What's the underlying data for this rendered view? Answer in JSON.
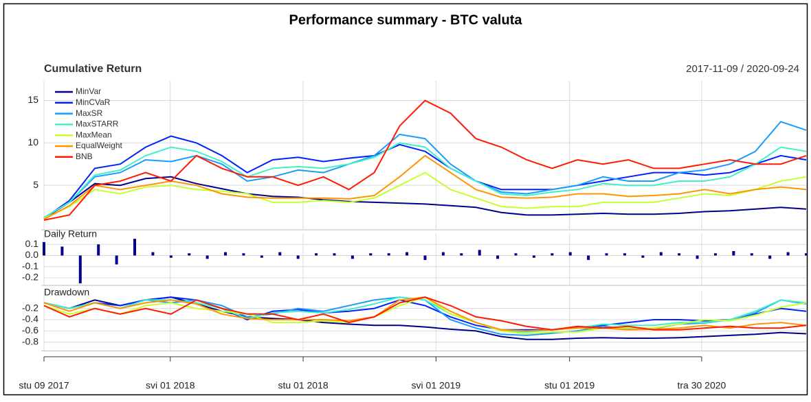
{
  "title": "Performance summary - BTC valuta",
  "chart_data": [
    {
      "type": "line",
      "title": "Cumulative Return",
      "subtitle": "2017-11-09 / 2020-09-24",
      "x": [
        0,
        35,
        70,
        105,
        140,
        175,
        210,
        245,
        280,
        315,
        350,
        385,
        420,
        455,
        490,
        525,
        560,
        595,
        630,
        665,
        700,
        735,
        770,
        805,
        840,
        875,
        910,
        945,
        980,
        1015,
        1050
      ],
      "xlim": [
        0,
        1050
      ],
      "ylim": [
        0,
        17.3
      ],
      "yticks": [
        5,
        10,
        15
      ],
      "grid": true,
      "legend": "top-left",
      "series": [
        {
          "name": "MinVar",
          "color": "#00008b",
          "values": [
            1.1,
            3.0,
            5.2,
            5.0,
            5.8,
            6.0,
            5.2,
            4.6,
            4.0,
            3.7,
            3.6,
            3.3,
            3.1,
            3.0,
            2.9,
            2.8,
            2.6,
            2.4,
            1.8,
            1.5,
            1.5,
            1.6,
            1.7,
            1.6,
            1.6,
            1.7,
            1.9,
            2.0,
            2.2,
            2.4,
            2.2
          ]
        },
        {
          "name": "MinCVaR",
          "color": "#0022ff",
          "values": [
            1.1,
            3.2,
            7.0,
            7.5,
            9.5,
            10.8,
            10.0,
            8.5,
            6.5,
            8.0,
            8.3,
            7.8,
            8.2,
            8.5,
            9.8,
            9.0,
            7.0,
            5.5,
            4.5,
            4.5,
            4.5,
            5.0,
            5.5,
            6.0,
            6.5,
            6.5,
            6.2,
            6.5,
            7.5,
            8.5,
            8.0
          ]
        },
        {
          "name": "MaxSR",
          "color": "#1a9cff",
          "values": [
            1.2,
            3.0,
            6.0,
            6.5,
            8.0,
            7.8,
            8.5,
            7.5,
            5.5,
            6.0,
            6.8,
            6.5,
            7.5,
            8.5,
            11.0,
            10.5,
            7.5,
            5.5,
            4.2,
            4.0,
            4.5,
            5.0,
            6.0,
            5.5,
            5.5,
            6.5,
            6.8,
            7.5,
            9.0,
            12.5,
            11.5
          ]
        },
        {
          "name": "MaxSTARR",
          "color": "#40f0c8",
          "values": [
            1.2,
            3.0,
            6.2,
            6.8,
            8.5,
            9.5,
            9.0,
            7.8,
            6.0,
            7.0,
            7.2,
            7.0,
            7.5,
            8.3,
            10.0,
            9.5,
            7.0,
            5.5,
            4.0,
            3.8,
            4.2,
            4.5,
            5.2,
            5.0,
            5.0,
            5.5,
            5.5,
            6.0,
            7.5,
            9.5,
            9.0
          ]
        },
        {
          "name": "MaxMean",
          "color": "#c6ff2e",
          "values": [
            1.1,
            2.5,
            4.5,
            4.0,
            4.8,
            5.0,
            4.5,
            4.3,
            4.0,
            3.0,
            3.0,
            3.2,
            3.0,
            3.5,
            5.0,
            6.5,
            4.5,
            3.5,
            2.5,
            2.3,
            2.5,
            2.5,
            3.0,
            3.0,
            3.0,
            3.5,
            4.0,
            3.8,
            4.5,
            5.5,
            6.0
          ]
        },
        {
          "name": "EqualWeight",
          "color": "#ff9400",
          "values": [
            1.0,
            2.6,
            5.0,
            4.5,
            5.0,
            5.5,
            5.0,
            4.0,
            3.6,
            3.5,
            3.5,
            3.5,
            3.4,
            3.8,
            6.0,
            8.5,
            6.5,
            4.5,
            3.6,
            3.5,
            3.6,
            4.0,
            4.0,
            3.7,
            3.8,
            4.0,
            4.5,
            4.0,
            4.5,
            4.8,
            4.5
          ]
        },
        {
          "name": "BNB",
          "color": "#ff1a00",
          "values": [
            0.9,
            1.5,
            5.0,
            5.5,
            6.5,
            5.5,
            8.5,
            7.0,
            6.0,
            6.0,
            5.0,
            6.0,
            4.5,
            6.5,
            12.0,
            15.0,
            13.5,
            10.5,
            9.5,
            8.0,
            7.0,
            8.0,
            7.5,
            8.0,
            7.0,
            7.0,
            7.5,
            8.0,
            7.5,
            7.5,
            8.5
          ]
        }
      ]
    },
    {
      "type": "bar",
      "title": "Daily Return",
      "x": [
        0,
        25,
        50,
        75,
        100,
        125,
        150,
        175,
        200,
        225,
        250,
        275,
        300,
        325,
        350,
        375,
        400,
        425,
        450,
        475,
        500,
        525,
        550,
        575,
        600,
        625,
        650,
        675,
        700,
        725,
        750,
        775,
        800,
        825,
        850,
        875,
        900,
        925,
        950,
        975,
        1000,
        1025,
        1050
      ],
      "xlim": [
        0,
        1050
      ],
      "ylim": [
        -0.25,
        0.2
      ],
      "yticks": [
        0.1,
        {
          "value": 0,
          "label": "0.0"
        },
        -0.1,
        -0.2
      ],
      "grid": true,
      "color": "#00008b",
      "values": [
        0.12,
        0.08,
        -0.25,
        0.1,
        -0.08,
        0.15,
        0.03,
        -0.02,
        0.02,
        -0.03,
        0.03,
        0.02,
        -0.02,
        0.03,
        -0.03,
        0.02,
        0.02,
        -0.03,
        0.02,
        0.02,
        0.03,
        -0.04,
        0.03,
        0.02,
        0.05,
        -0.03,
        0.02,
        -0.02,
        0.02,
        0.03,
        -0.04,
        0.02,
        0.02,
        -0.02,
        0.03,
        0.02,
        -0.03,
        0.02,
        0.04,
        0.02,
        -0.03,
        0.03,
        0.02
      ]
    },
    {
      "type": "line",
      "title": "Drawdown",
      "x": [
        0,
        35,
        70,
        105,
        140,
        175,
        210,
        245,
        280,
        315,
        350,
        385,
        420,
        455,
        490,
        525,
        560,
        595,
        630,
        665,
        700,
        735,
        770,
        805,
        840,
        875,
        910,
        945,
        980,
        1015,
        1050
      ],
      "xlim": [
        0,
        1050
      ],
      "ylim": [
        -0.92,
        0.1
      ],
      "yticks": [
        -0.2,
        -0.4,
        -0.6,
        -0.8
      ],
      "grid": true,
      "xticks": [
        {
          "value": 0,
          "label": "stu 09 2017"
        },
        {
          "value": 174,
          "label": "svi 01 2018"
        },
        {
          "value": 357,
          "label": "stu 01 2018"
        },
        {
          "value": 540,
          "label": "svi 01 2019"
        },
        {
          "value": 724,
          "label": "stu 01 2019"
        },
        {
          "value": 906,
          "label": "tra 30 2020"
        }
      ],
      "series": [
        {
          "color": "#00008b",
          "values": [
            -0.1,
            -0.2,
            -0.05,
            -0.15,
            -0.05,
            0,
            -0.12,
            -0.25,
            -0.35,
            -0.38,
            -0.4,
            -0.45,
            -0.48,
            -0.5,
            -0.5,
            -0.53,
            -0.57,
            -0.6,
            -0.7,
            -0.75,
            -0.75,
            -0.73,
            -0.72,
            -0.73,
            -0.73,
            -0.72,
            -0.7,
            -0.68,
            -0.66,
            -0.63,
            -0.65
          ]
        },
        {
          "color": "#0022ff",
          "values": [
            -0.1,
            -0.2,
            -0.1,
            -0.15,
            -0.05,
            0,
            -0.05,
            -0.2,
            -0.4,
            -0.25,
            -0.22,
            -0.28,
            -0.25,
            -0.2,
            -0.05,
            -0.15,
            -0.35,
            -0.5,
            -0.58,
            -0.58,
            -0.58,
            -0.54,
            -0.5,
            -0.45,
            -0.4,
            -0.4,
            -0.42,
            -0.4,
            -0.3,
            -0.2,
            -0.25
          ]
        },
        {
          "color": "#1a9cff",
          "values": [
            -0.1,
            -0.2,
            -0.1,
            -0.2,
            -0.05,
            -0.1,
            -0.05,
            -0.15,
            -0.35,
            -0.3,
            -0.2,
            -0.25,
            -0.15,
            -0.05,
            0,
            -0.05,
            -0.4,
            -0.55,
            -0.66,
            -0.68,
            -0.64,
            -0.6,
            -0.52,
            -0.56,
            -0.56,
            -0.48,
            -0.46,
            -0.4,
            -0.28,
            -0.05,
            -0.12
          ]
        },
        {
          "color": "#40f0c8",
          "values": [
            -0.1,
            -0.2,
            -0.1,
            -0.2,
            -0.05,
            -0.05,
            -0.1,
            -0.2,
            -0.38,
            -0.28,
            -0.25,
            -0.28,
            -0.22,
            -0.12,
            0,
            -0.05,
            -0.3,
            -0.45,
            -0.6,
            -0.62,
            -0.58,
            -0.55,
            -0.48,
            -0.5,
            -0.5,
            -0.45,
            -0.45,
            -0.4,
            -0.25,
            -0.05,
            -0.1
          ]
        },
        {
          "color": "#c6ff2e",
          "values": [
            -0.15,
            -0.3,
            -0.2,
            -0.3,
            -0.15,
            -0.1,
            -0.2,
            -0.25,
            -0.3,
            -0.45,
            -0.45,
            -0.42,
            -0.45,
            -0.35,
            -0.15,
            0,
            -0.3,
            -0.45,
            -0.6,
            -0.65,
            -0.62,
            -0.62,
            -0.55,
            -0.55,
            -0.55,
            -0.48,
            -0.4,
            -0.42,
            -0.32,
            -0.18,
            -0.1
          ]
        },
        {
          "color": "#ff9400",
          "values": [
            -0.1,
            -0.25,
            -0.1,
            -0.2,
            -0.1,
            -0.05,
            -0.12,
            -0.3,
            -0.38,
            -0.4,
            -0.4,
            -0.4,
            -0.42,
            -0.35,
            -0.05,
            0,
            -0.25,
            -0.45,
            -0.58,
            -0.6,
            -0.58,
            -0.55,
            -0.55,
            -0.58,
            -0.57,
            -0.55,
            -0.5,
            -0.55,
            -0.48,
            -0.45,
            -0.5
          ]
        },
        {
          "color": "#ff1a00",
          "values": [
            -0.15,
            -0.35,
            -0.2,
            -0.3,
            -0.2,
            -0.3,
            -0.05,
            -0.2,
            -0.3,
            -0.3,
            -0.4,
            -0.3,
            -0.45,
            -0.35,
            -0.1,
            0,
            -0.15,
            -0.35,
            -0.42,
            -0.52,
            -0.58,
            -0.52,
            -0.55,
            -0.52,
            -0.58,
            -0.58,
            -0.55,
            -0.52,
            -0.55,
            -0.55,
            -0.5
          ]
        }
      ]
    }
  ]
}
